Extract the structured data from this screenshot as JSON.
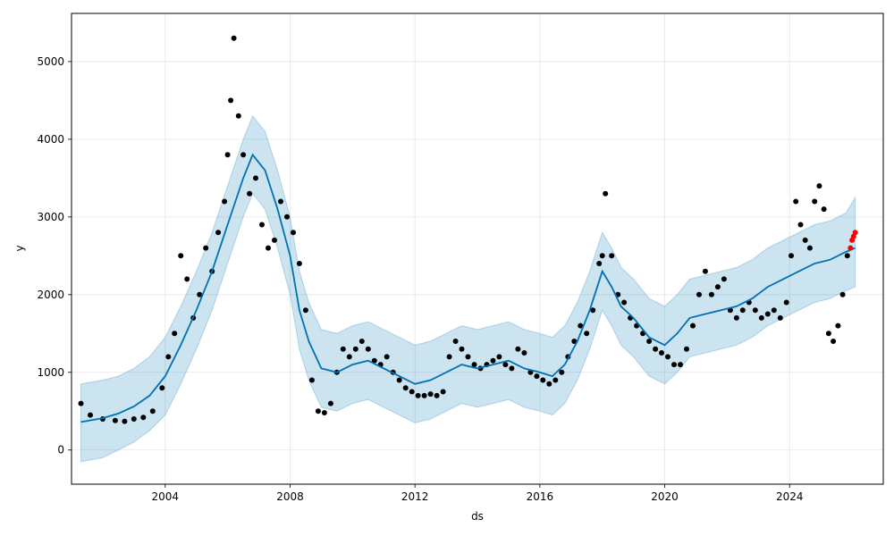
{
  "chart_data": {
    "type": "scatter",
    "title": "",
    "xlabel": "ds",
    "ylabel": "y",
    "xlim": [
      2001.0,
      2027.0
    ],
    "ylim": [
      -440,
      5620
    ],
    "x_ticks": [
      2004,
      2008,
      2012,
      2016,
      2020,
      2024
    ],
    "x_tick_labels": [
      "2004",
      "2008",
      "2012",
      "2016",
      "2020",
      "2024"
    ],
    "y_ticks": [
      0,
      1000,
      2000,
      3000,
      4000,
      5000
    ],
    "y_tick_labels": [
      "0",
      "1000",
      "2000",
      "3000",
      "4000",
      "5000"
    ],
    "grid": true,
    "colors": {
      "observed": "#000000",
      "recent": "#ff0000",
      "forecast_line": "#0072b2",
      "interval_fill": "#0072b2"
    },
    "forecast": {
      "x": [
        2001.3,
        2002.0,
        2002.5,
        2003.0,
        2003.5,
        2004.0,
        2004.5,
        2005.0,
        2005.5,
        2006.0,
        2006.5,
        2006.8,
        2007.2,
        2007.6,
        2008.0,
        2008.3,
        2008.6,
        2009.0,
        2009.5,
        2010.0,
        2010.5,
        2011.0,
        2011.5,
        2012.0,
        2012.5,
        2013.0,
        2013.5,
        2014.0,
        2014.5,
        2015.0,
        2015.5,
        2016.0,
        2016.4,
        2016.8,
        2017.2,
        2017.6,
        2018.0,
        2018.3,
        2018.6,
        2019.0,
        2019.5,
        2020.0,
        2020.4,
        2020.8,
        2021.3,
        2021.8,
        2022.3,
        2022.8,
        2023.3,
        2023.8,
        2024.3,
        2024.8,
        2025.3,
        2025.8,
        2026.1
      ],
      "yhat": [
        360,
        410,
        470,
        560,
        700,
        950,
        1350,
        1800,
        2300,
        2900,
        3500,
        3800,
        3600,
        3100,
        2500,
        1800,
        1400,
        1050,
        1000,
        1100,
        1150,
        1050,
        950,
        850,
        900,
        1000,
        1100,
        1050,
        1100,
        1150,
        1050,
        1000,
        950,
        1100,
        1400,
        1800,
        2300,
        2100,
        1850,
        1700,
        1450,
        1350,
        1500,
        1700,
        1750,
        1800,
        1850,
        1950,
        2100,
        2200,
        2300,
        2400,
        2450,
        2550,
        2600
      ],
      "yhat_lower": [
        -150,
        -100,
        0,
        100,
        250,
        450,
        850,
        1300,
        1800,
        2400,
        3000,
        3300,
        3100,
        2600,
        2000,
        1300,
        900,
        550,
        500,
        600,
        650,
        550,
        450,
        350,
        400,
        500,
        600,
        550,
        600,
        650,
        550,
        500,
        450,
        600,
        900,
        1300,
        1800,
        1600,
        1350,
        1200,
        950,
        850,
        1000,
        1200,
        1250,
        1300,
        1350,
        1450,
        1600,
        1700,
        1800,
        1900,
        1950,
        2050,
        2100
      ],
      "yhat_upper": [
        850,
        900,
        950,
        1050,
        1200,
        1450,
        1850,
        2300,
        2800,
        3400,
        4000,
        4300,
        4100,
        3600,
        3000,
        2300,
        1900,
        1550,
        1500,
        1600,
        1650,
        1550,
        1450,
        1350,
        1400,
        1500,
        1600,
        1550,
        1600,
        1650,
        1550,
        1500,
        1450,
        1600,
        1900,
        2300,
        2800,
        2600,
        2350,
        2200,
        1950,
        1850,
        2000,
        2200,
        2250,
        2300,
        2350,
        2450,
        2600,
        2700,
        2800,
        2900,
        2950,
        3050,
        3250
      ]
    },
    "observed": {
      "x": [
        2001.3,
        2001.6,
        2002.0,
        2002.4,
        2002.7,
        2003.0,
        2003.3,
        2003.6,
        2003.9,
        2004.1,
        2004.3,
        2004.5,
        2004.7,
        2004.9,
        2005.1,
        2005.3,
        2005.5,
        2005.7,
        2005.9,
        2006.0,
        2006.1,
        2006.2,
        2006.35,
        2006.5,
        2006.7,
        2006.9,
        2007.1,
        2007.3,
        2007.5,
        2007.7,
        2007.9,
        2008.1,
        2008.3,
        2008.5,
        2008.7,
        2008.9,
        2009.1,
        2009.3,
        2009.5,
        2009.7,
        2009.9,
        2010.1,
        2010.3,
        2010.5,
        2010.7,
        2010.9,
        2011.1,
        2011.3,
        2011.5,
        2011.7,
        2011.9,
        2012.1,
        2012.3,
        2012.5,
        2012.7,
        2012.9,
        2013.1,
        2013.3,
        2013.5,
        2013.7,
        2013.9,
        2014.1,
        2014.3,
        2014.5,
        2014.7,
        2014.9,
        2015.1,
        2015.3,
        2015.5,
        2015.7,
        2015.9,
        2016.1,
        2016.3,
        2016.5,
        2016.7,
        2016.9,
        2017.1,
        2017.3,
        2017.5,
        2017.7,
        2017.9,
        2018.0,
        2018.1,
        2018.3,
        2018.5,
        2018.7,
        2018.9,
        2019.1,
        2019.3,
        2019.5,
        2019.7,
        2019.9,
        2020.1,
        2020.3,
        2020.5,
        2020.7,
        2020.9,
        2021.1,
        2021.3,
        2021.5,
        2021.7,
        2021.9,
        2022.1,
        2022.3,
        2022.5,
        2022.7,
        2022.9,
        2023.1,
        2023.3,
        2023.5,
        2023.7,
        2023.9,
        2024.05,
        2024.2,
        2024.35,
        2024.5,
        2024.65,
        2024.8,
        2024.95,
        2025.1,
        2025.25,
        2025.4,
        2025.55,
        2025.7,
        2025.85
      ],
      "y": [
        600,
        450,
        400,
        380,
        370,
        400,
        420,
        500,
        800,
        1200,
        1500,
        2500,
        2200,
        1700,
        2000,
        2600,
        2300,
        2800,
        3200,
        3800,
        4500,
        5300,
        4300,
        3800,
        3300,
        3500,
        2900,
        2600,
        2700,
        3200,
        3000,
        2800,
        2400,
        1800,
        900,
        500,
        480,
        600,
        1000,
        1300,
        1200,
        1300,
        1400,
        1300,
        1150,
        1100,
        1200,
        1000,
        900,
        800,
        750,
        700,
        700,
        720,
        700,
        750,
        1200,
        1400,
        1300,
        1200,
        1100,
        1050,
        1100,
        1150,
        1200,
        1100,
        1050,
        1300,
        1250,
        1000,
        950,
        900,
        850,
        900,
        1000,
        1200,
        1400,
        1600,
        1500,
        1800,
        2400,
        2500,
        3300,
        2500,
        2000,
        1900,
        1700,
        1600,
        1500,
        1400,
        1300,
        1250,
        1200,
        1100,
        1100,
        1300,
        1600,
        2000,
        2300,
        2000,
        2100,
        2200,
        1800,
        1700,
        1800,
        1900,
        1800,
        1700,
        1750,
        1800,
        1700,
        1900,
        2500,
        3200,
        2900,
        2700,
        2600,
        3200,
        3400,
        3100,
        1500,
        1400,
        1600,
        2000,
        2500
      ],
      "recent_x": [
        2025.95,
        2026.0,
        2026.05,
        2026.1
      ],
      "recent_y": [
        2600,
        2700,
        2750,
        2800
      ]
    }
  }
}
